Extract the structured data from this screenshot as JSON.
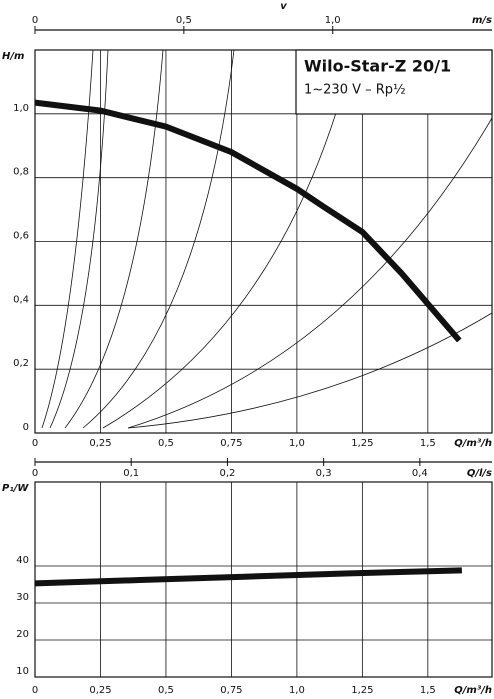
{
  "chart_data": [
    {
      "type": "line",
      "title": "Wilo-Star-Z 20/1",
      "subtitle": "1~230 V – Rp½",
      "x_label": "Q/m³/h",
      "y_label": "H/m",
      "x": [
        0,
        0.25,
        0.5,
        0.75,
        1.0,
        1.1,
        1.25,
        1.4,
        1.62
      ],
      "series": [
        {
          "color": "#111111",
          "values": [
            1.035,
            1.01,
            0.96,
            0.88,
            0.765,
            0.71,
            0.63,
            0.5,
            0.29
          ]
        }
      ],
      "xlim": [
        0,
        1.745
      ],
      "ylim": [
        0,
        1.2
      ],
      "xticks": [
        0,
        {
          "value": 0.25,
          "label": "0,25"
        },
        {
          "value": 0.5,
          "label": "0,5"
        },
        {
          "value": 0.75,
          "label": "0,75"
        },
        {
          "value": 1.0,
          "label": "1,0"
        },
        {
          "value": 1.25,
          "label": "1,25"
        },
        {
          "value": 1.5,
          "label": "1,5"
        }
      ],
      "yticks": [
        0,
        {
          "value": 0.2,
          "label": "0,2"
        },
        {
          "value": 0.4,
          "label": "0,4"
        },
        {
          "value": 0.6,
          "label": "0,6"
        },
        {
          "value": 0.8,
          "label": "0,8"
        },
        {
          "value": 1.0,
          "label": "1,0"
        }
      ],
      "top_axis": {
        "label": "v",
        "unit": "m/s",
        "lim": [
          0,
          1.535
        ],
        "ticks": [
          0,
          {
            "value": 0.5,
            "label": "0,5"
          },
          {
            "value": 1.0,
            "label": "1,0"
          }
        ]
      },
      "grid": true
    },
    {
      "type": "line",
      "x_label": "Q/m³/h",
      "y_label": "P₁/W",
      "x": [
        0,
        0.4,
        0.8,
        1.2,
        1.63
      ],
      "series": [
        {
          "color": "#111111",
          "values": [
            35.3,
            36.2,
            37.1,
            38.0,
            38.8
          ]
        }
      ],
      "xlim": [
        0,
        1.745
      ],
      "ylim": [
        10,
        62.7
      ],
      "xticks": [
        0,
        {
          "value": 0.25,
          "label": "0,25"
        },
        {
          "value": 0.5,
          "label": "0,5"
        },
        {
          "value": 0.75,
          "label": "0,75"
        },
        {
          "value": 1.0,
          "label": "1,0"
        },
        {
          "value": 1.25,
          "label": "1,25"
        },
        {
          "value": 1.5,
          "label": "1,5"
        }
      ],
      "yticks": [
        10,
        20,
        30,
        40
      ],
      "top_axis": {
        "unit": "Q/l/s",
        "lim": [
          0,
          0.475
        ],
        "ticks": [
          0,
          {
            "value": 0.1,
            "label": "0,1"
          },
          {
            "value": 0.2,
            "label": "0,2"
          },
          {
            "value": 0.3,
            "label": "0,3"
          },
          {
            "value": 0.4,
            "label": "0,4"
          }
        ]
      },
      "grid": true
    }
  ]
}
